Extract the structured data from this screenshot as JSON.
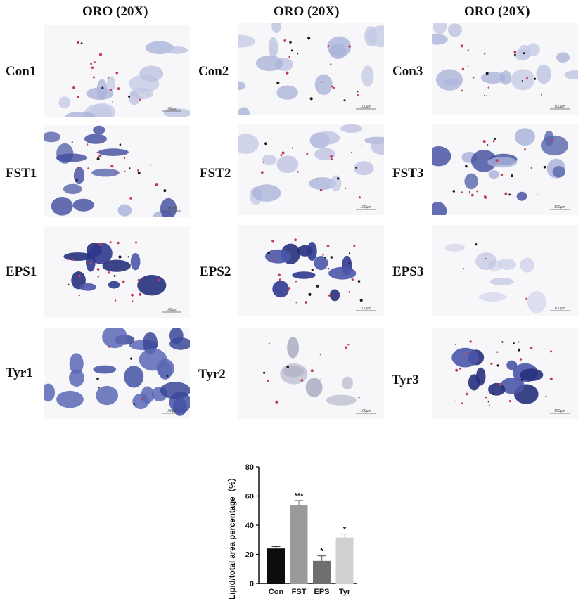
{
  "column_titles": [
    "ORO (20X)",
    "ORO (20X)",
    "ORO (20X)"
  ],
  "scale_bar_label": "100μm",
  "micrographs": [
    {
      "label": "Con1",
      "stain": "light"
    },
    {
      "label": "Con2",
      "stain": "light"
    },
    {
      "label": "Con3",
      "stain": "light"
    },
    {
      "label": "FST1",
      "stain": "medium"
    },
    {
      "label": "FST2",
      "stain": "light"
    },
    {
      "label": "FST3",
      "stain": "medium"
    },
    {
      "label": "EPS1",
      "stain": "dark"
    },
    {
      "label": "EPS2",
      "stain": "dark"
    },
    {
      "label": "EPS3",
      "stain": "faint"
    },
    {
      "label": "Tyr1",
      "stain": "dense"
    },
    {
      "label": "Tyr2",
      "stain": "sparse"
    },
    {
      "label": "Tyr3",
      "stain": "dark"
    }
  ],
  "colors": {
    "cell_light": "#aab3d6",
    "cell_dark": "#2f3a8f",
    "lipid": "#c23a5a"
  },
  "chart_data": {
    "type": "bar",
    "categories": [
      "Con",
      "FST",
      "EPS",
      "Tyr"
    ],
    "values": [
      24,
      53.5,
      15.5,
      31.5
    ],
    "errors": [
      1.5,
      3.5,
      3.5,
      2.5
    ],
    "significance": [
      "",
      "***",
      "*",
      "*"
    ],
    "colors": [
      "#0d0d0d",
      "#9a9a9a",
      "#6e6e6e",
      "#d0d0d0"
    ],
    "ylabel": "Lipid/total area percentage（%）",
    "ylim": [
      0,
      80
    ],
    "yticks": [
      0,
      20,
      40,
      60,
      80
    ],
    "grid": false
  }
}
